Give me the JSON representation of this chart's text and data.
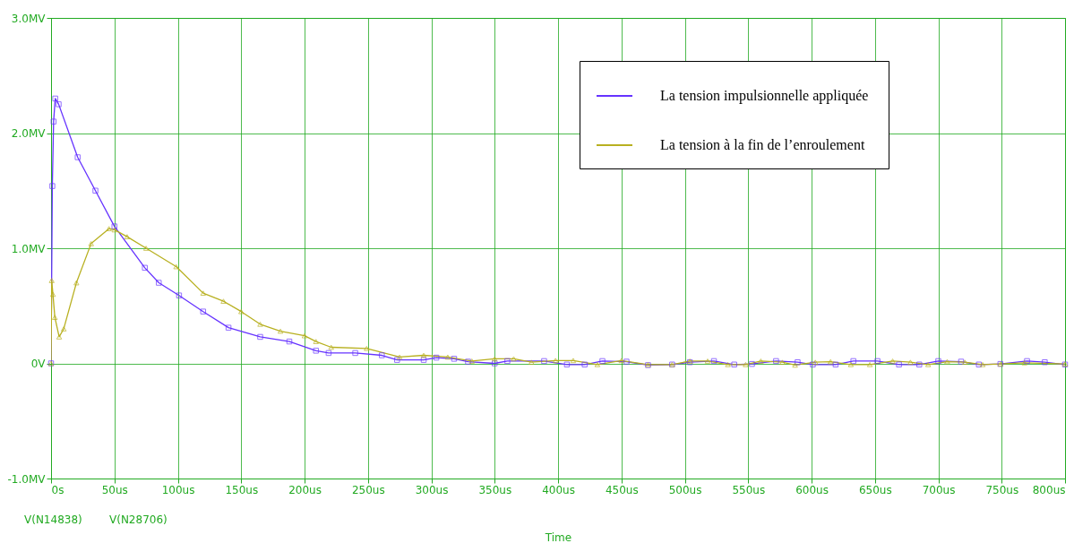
{
  "chart_data": {
    "type": "line",
    "xlabel": "Time",
    "xlim": [
      0,
      800
    ],
    "ylim": [
      -1,
      3
    ],
    "xticks": [
      {
        "value": 0,
        "label": "0s"
      },
      {
        "value": 50,
        "label": "50us"
      },
      {
        "value": 100,
        "label": "100us"
      },
      {
        "value": 150,
        "label": "150us"
      },
      {
        "value": 200,
        "label": "200us"
      },
      {
        "value": 250,
        "label": "250us"
      },
      {
        "value": 300,
        "label": "300us"
      },
      {
        "value": 350,
        "label": "350us"
      },
      {
        "value": 400,
        "label": "400us"
      },
      {
        "value": 450,
        "label": "450us"
      },
      {
        "value": 500,
        "label": "500us"
      },
      {
        "value": 550,
        "label": "550us"
      },
      {
        "value": 600,
        "label": "600us"
      },
      {
        "value": 650,
        "label": "650us"
      },
      {
        "value": 700,
        "label": "700us"
      },
      {
        "value": 750,
        "label": "750us"
      },
      {
        "value": 800,
        "label": "800us"
      }
    ],
    "yticks": [
      {
        "value": -1,
        "label": "-1.0MV"
      },
      {
        "value": 0,
        "label": "0V"
      },
      {
        "value": 1,
        "label": "1.0MV"
      },
      {
        "value": 2,
        "label": "2.0MV"
      },
      {
        "value": 3,
        "label": "3.0MV"
      }
    ],
    "grid": true,
    "legend": "top right",
    "line_style": "solid",
    "annotations": [
      "V(N14838)",
      "V(N28706)"
    ],
    "series": [
      {
        "name": "La tension impulsionnelle  appliquée",
        "color": "#6633ff",
        "marker": "square",
        "x": [
          0,
          1,
          2,
          3.3,
          6,
          21,
          35,
          50,
          74,
          85,
          101,
          120,
          140,
          165,
          188,
          209,
          219,
          240,
          261,
          273,
          294,
          304,
          318,
          329,
          350,
          360,
          389,
          407,
          421,
          435,
          454,
          471,
          490,
          504,
          523,
          539,
          553,
          572,
          589,
          601,
          619,
          633,
          652,
          669,
          685,
          700,
          718,
          732,
          749,
          770,
          784,
          800
        ],
        "values": [
          0,
          1.54,
          2.1,
          2.3,
          2.25,
          1.79,
          1.5,
          1.19,
          0.83,
          0.7,
          0.59,
          0.45,
          0.31,
          0.23,
          0.19,
          0.11,
          0.09,
          0.09,
          0.07,
          0.03,
          0.03,
          0.05,
          0.04,
          0.015,
          0,
          0.02,
          0.02,
          -0.01,
          -0.01,
          0.02,
          0.015,
          -0.015,
          -0.01,
          0.01,
          0.02,
          -0.01,
          -0.005,
          0.02,
          0.01,
          -0.01,
          -0.01,
          0.02,
          0.02,
          -0.01,
          -0.01,
          0.02,
          0.015,
          -0.01,
          -0.005,
          0.02,
          0.01,
          -0.01
        ]
      },
      {
        "name": "La tension à la fin de l’enroulement",
        "color": "#b8b020",
        "marker": "triangle",
        "x": [
          0,
          0.5,
          1.5,
          3,
          6.4,
          10,
          20,
          31.6,
          45.7,
          50,
          60,
          75,
          98.7,
          120,
          136,
          150,
          165,
          181,
          200,
          209,
          221,
          249,
          275,
          294,
          313,
          332,
          350,
          365,
          379,
          398,
          412,
          431,
          450,
          471,
          490,
          504,
          518,
          534,
          548,
          560,
          577,
          587,
          603,
          615,
          631,
          646,
          664,
          678,
          692,
          707,
          721,
          735,
          749,
          768,
          800
        ],
        "values": [
          0,
          0.72,
          0.6,
          0.4,
          0.23,
          0.3,
          0.7,
          1.04,
          1.17,
          1.16,
          1.1,
          1.0,
          0.84,
          0.61,
          0.54,
          0.45,
          0.34,
          0.28,
          0.24,
          0.19,
          0.14,
          0.13,
          0.055,
          0.07,
          0.055,
          0.02,
          0.04,
          0.04,
          0.01,
          0.025,
          0.025,
          -0.01,
          0.025,
          -0.01,
          -0.01,
          0.02,
          0.02,
          -0.01,
          -0.01,
          0.02,
          0.01,
          -0.015,
          0.01,
          0.015,
          -0.01,
          -0.01,
          0.02,
          0.01,
          -0.01,
          0.015,
          0.01,
          -0.01,
          -0.005,
          0.005,
          -0.005
        ]
      }
    ]
  }
}
